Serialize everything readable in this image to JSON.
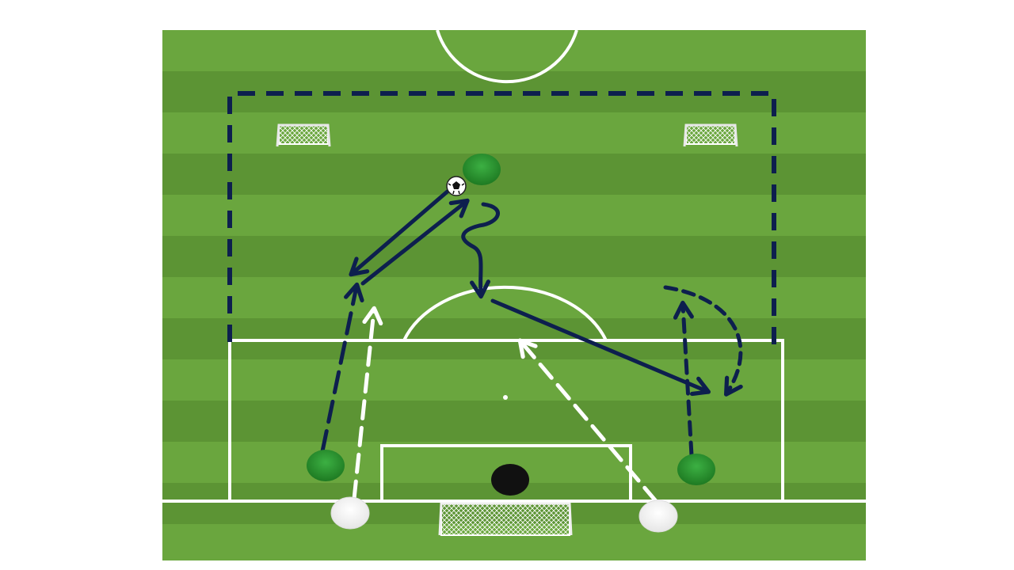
{
  "diagram": {
    "type": "soccer-drill",
    "colors": {
      "pitch_stripe_light": "#6aa63e",
      "pitch_stripe_dark": "#5c9434",
      "pitch_line": "#ffffff",
      "area_boundary": "#0d1f4e",
      "attacking_player": "#2a8f2a",
      "defending_player": "#ffffff",
      "goalkeeper": "#111111",
      "pass_arrow": "#0d1f4e",
      "white_run_arrow": "#ffffff"
    },
    "icons": [
      "soccer-ball-icon",
      "mini-goal-icon",
      "full-goal-icon",
      "player-cone-icon"
    ],
    "players": {
      "green": 3,
      "white": 2,
      "goalkeeper": 1
    },
    "mini_goals": 2,
    "full_goals": 1
  }
}
